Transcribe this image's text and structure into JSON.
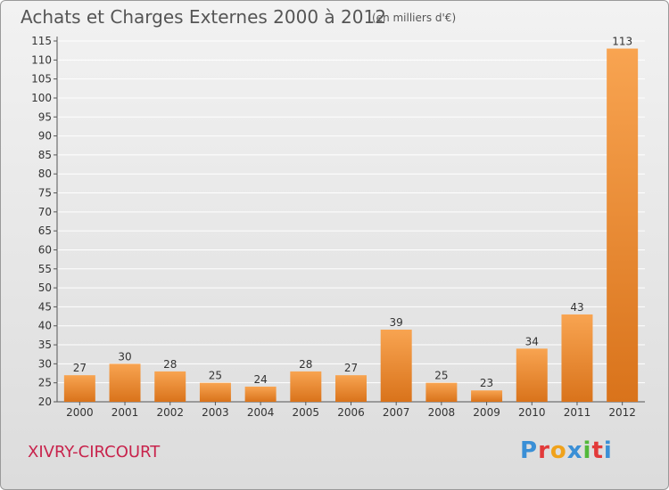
{
  "header": {
    "title": "Achats et Charges Externes 2000 à 2012",
    "unit": "(en milliers d'€)"
  },
  "footer": {
    "commune": "XIVRY-CIRCOURT",
    "logo_letters": [
      "P",
      "r",
      "o",
      "x",
      "i",
      "t",
      "i"
    ],
    "logo_colors": [
      "#3a8fd6",
      "#e23a3a",
      "#f0a21b",
      "#3a8fd6",
      "#52b83a",
      "#e23a3a",
      "#3a8fd6"
    ]
  },
  "colors": {
    "bar_light": "#f8a451",
    "bar_dark": "#d9731b",
    "grid": "#ffffff",
    "axis": "#555555"
  },
  "chart_data": {
    "type": "bar",
    "title": "Achats et Charges Externes 2000 à 2012",
    "unit": "(en milliers d'€)",
    "categories": [
      "2000",
      "2001",
      "2002",
      "2003",
      "2004",
      "2005",
      "2006",
      "2007",
      "2008",
      "2009",
      "2010",
      "2011",
      "2012"
    ],
    "values": [
      27,
      30,
      28,
      25,
      24,
      28,
      27,
      39,
      25,
      23,
      34,
      43,
      113
    ],
    "ylim": [
      20,
      115
    ],
    "yticks": [
      20,
      25,
      30,
      35,
      40,
      45,
      50,
      55,
      60,
      65,
      70,
      75,
      80,
      85,
      90,
      95,
      100,
      105,
      110,
      115
    ],
    "grid": true,
    "legend": "none"
  }
}
